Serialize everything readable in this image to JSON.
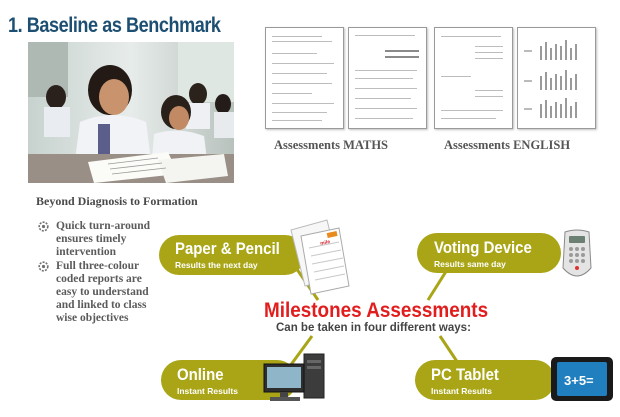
{
  "title": "1. Baseline as Benchmark",
  "photo_caption": "Beyond Diagnosis to Formation",
  "assessments": {
    "maths_caption": "Assessments MATHS",
    "english_caption": "Assessments ENGLISH"
  },
  "bullets": [
    "Quick turn-around ensures timely intervention",
    "Full three-colour coded reports are easy to understand and linked to class wise objectives"
  ],
  "center": {
    "title": "Milestones Assessments",
    "subtitle": "Can be taken in four different ways:"
  },
  "methods": [
    {
      "title": "Paper & Pencil",
      "sub": "Results the next day",
      "icon": "paper-report-icon"
    },
    {
      "title": "Voting Device",
      "sub": "Results same day",
      "icon": "voting-device-icon"
    },
    {
      "title": "Online",
      "sub": "Instant Results",
      "icon": "desktop-computer-icon"
    },
    {
      "title": "PC Tablet",
      "sub": "Instant Results",
      "icon": "tablet-icon"
    }
  ],
  "tablet_screen_text": "3+5=",
  "report_logo_text": "mile",
  "colors": {
    "title": "#1d4f72",
    "pill": "#a9a516",
    "center_title": "#e11d1d",
    "caption": "#555555"
  }
}
